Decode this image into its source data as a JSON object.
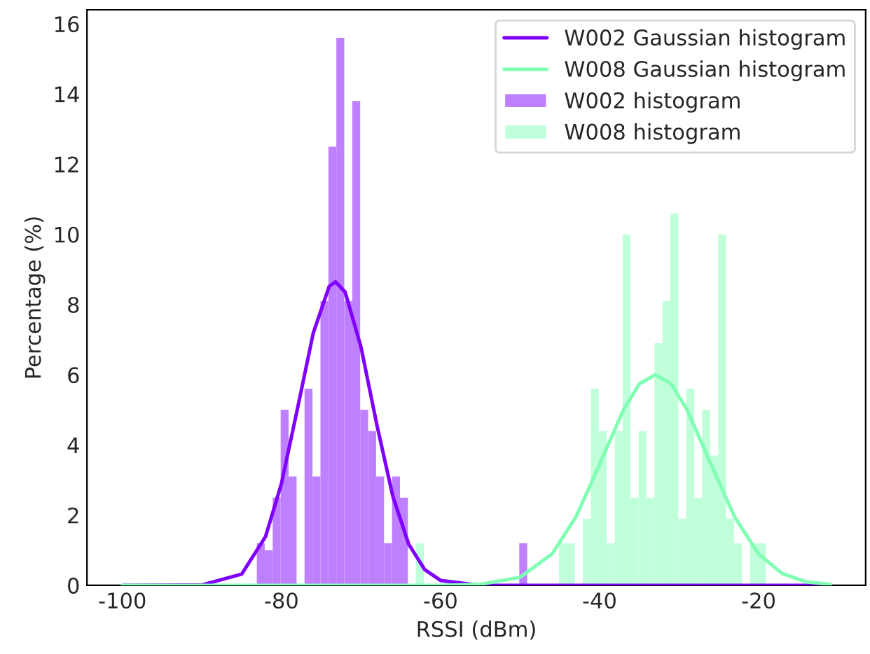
{
  "chart_data": {
    "type": "histogram",
    "xlabel": "RSSI (dBm)",
    "ylabel": "Percentage (%)",
    "xlim": [
      -104.45,
      -6.55
    ],
    "ylim": [
      0,
      16.4
    ],
    "xticks": [
      -100,
      -80,
      -60,
      -40,
      -20
    ],
    "yticks": [
      0,
      2,
      4,
      6,
      8,
      10,
      12,
      14,
      16
    ],
    "grid": false,
    "legend": "top right",
    "series": [
      {
        "name": "W002 Gaussian histogram",
        "type": "line",
        "color": "#7f00ff",
        "x": [
          -100,
          -90,
          -85,
          -82,
          -80,
          -78,
          -76,
          -74,
          -73.2,
          -72,
          -70,
          -68,
          -66,
          -64,
          -62,
          -60,
          -55,
          -50,
          -40,
          -30,
          -11
        ],
        "values": [
          0,
          0.01,
          0.32,
          1.39,
          2.9,
          5.02,
          7.19,
          8.52,
          8.65,
          8.36,
          6.79,
          4.57,
          2.54,
          1.17,
          0.45,
          0.14,
          0,
          0,
          0,
          0,
          0
        ]
      },
      {
        "name": "W008 Gaussian histogram",
        "type": "line",
        "color": "#80ffb4",
        "x": [
          -100,
          -70,
          -60,
          -55,
          -50,
          -46,
          -43,
          -40,
          -37,
          -35,
          -33,
          -31,
          -29,
          -26,
          -23,
          -20,
          -17,
          -14,
          -11
        ],
        "values": [
          0,
          0,
          0,
          0.03,
          0.23,
          0.89,
          1.94,
          3.45,
          5.0,
          5.74,
          6.0,
          5.74,
          5.0,
          3.45,
          1.94,
          0.89,
          0.33,
          0.1,
          0.03
        ]
      },
      {
        "name": "W002 histogram",
        "type": "histogram",
        "color": "#bf80ff",
        "bins": [
          -83.1,
          -82.1,
          -81.1,
          -80.1,
          -79.1,
          -78.1,
          -77.1,
          -76.1,
          -75.1,
          -74.1,
          -73.1,
          -72.1,
          -71.1,
          -70.1,
          -69.1,
          -68.1,
          -67.1,
          -66.1,
          -65.1,
          -64.1,
          -63.1,
          -62.1,
          -61.1,
          -60.1,
          -59.1,
          -58.1,
          -57.1,
          -56.1,
          -55.1,
          -54.1,
          -53.1,
          -52.1,
          -51.1,
          -50.1,
          -49.1
        ],
        "values": [
          1.2,
          1.0,
          2.5,
          5.0,
          3.1,
          0,
          5.6,
          3.1,
          8.1,
          12.5,
          15.6,
          8.1,
          13.8,
          5.0,
          4.4,
          3.1,
          1.2,
          3.1,
          2.5,
          0,
          0,
          0,
          0,
          0,
          0,
          0,
          0,
          0,
          0,
          0,
          0,
          0,
          0,
          1.2
        ]
      },
      {
        "name": "W008 histogram",
        "type": "histogram",
        "color": "#bfffda",
        "bins": [
          -63.1,
          -62.1,
          -61.1,
          -60.1,
          -59.1,
          -58.1,
          -57.1,
          -56.1,
          -55.1,
          -54.1,
          -53.1,
          -52.1,
          -51.1,
          -50.1,
          -49.1,
          -48.1,
          -47.1,
          -46.1,
          -45.1,
          -44.1,
          -43.1,
          -42.1,
          -41.1,
          -40.1,
          -39.1,
          -38.1,
          -37.1,
          -36.1,
          -35.1,
          -34.1,
          -33.1,
          -32.1,
          -31.1,
          -30.1,
          -29.1,
          -28.1,
          -27.1,
          -26.1,
          -25.1,
          -24.1,
          -23.1,
          -22.1,
          -21.1,
          -20.1,
          -19.1
        ],
        "values": [
          1.2,
          0,
          0,
          0,
          0,
          0,
          0,
          0,
          0,
          0,
          0,
          0,
          0,
          0,
          0,
          0,
          0,
          0,
          1.2,
          1.2,
          0,
          1.9,
          5.6,
          4.4,
          1.2,
          4.4,
          10.0,
          2.5,
          4.4,
          2.5,
          6.9,
          8.1,
          10.6,
          1.9,
          5.6,
          2.5,
          5.0,
          3.7,
          10.0,
          1.9,
          1.2,
          0,
          1.2,
          1.2
        ]
      }
    ]
  }
}
